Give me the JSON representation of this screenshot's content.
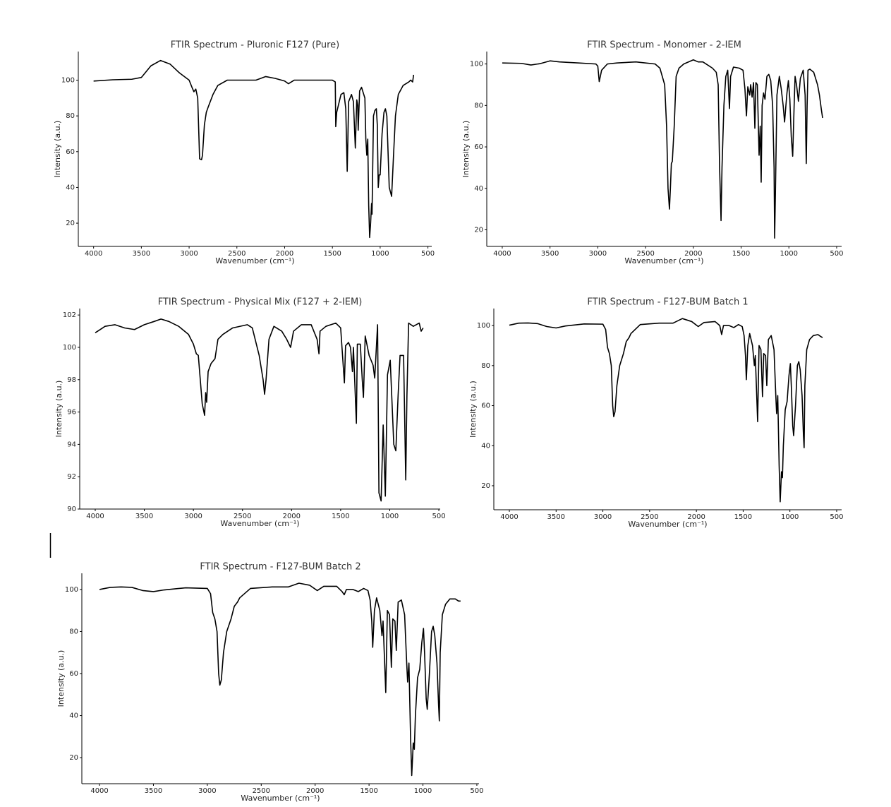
{
  "chart_data": [
    {
      "type": "line",
      "title": "FTIR Spectrum - Pluronic F127 (Pure)",
      "x_label": "Wavenumber (cm⁻¹)",
      "y_label": "Intensity (a.u.)",
      "xlim": [
        4160,
        460
      ],
      "xticks": [
        4000,
        3500,
        3000,
        2500,
        2000,
        1500,
        1000,
        500
      ],
      "ylim": [
        7,
        116
      ],
      "yticks": [
        20,
        40,
        60,
        80,
        100
      ],
      "color": "#000000",
      "x": [
        4000,
        3800,
        3600,
        3500,
        3400,
        3300,
        3200,
        3100,
        3000,
        2970,
        2950,
        2930,
        2910,
        2890,
        2870,
        2860,
        2840,
        2820,
        2800,
        2750,
        2700,
        2600,
        2400,
        2300,
        2200,
        2100,
        2000,
        1960,
        1900,
        1800,
        1600,
        1500,
        1470,
        1465,
        1455,
        1410,
        1380,
        1360,
        1345,
        1330,
        1300,
        1280,
        1260,
        1245,
        1235,
        1230,
        1215,
        1195,
        1160,
        1150,
        1140,
        1130,
        1120,
        1110,
        1100,
        1090,
        1085,
        1070,
        1055,
        1040,
        1030,
        1020,
        1010,
        1000,
        980,
        960,
        945,
        930,
        905,
        880,
        860,
        840,
        810,
        760,
        700,
        680,
        660,
        650
      ],
      "values": [
        99.5,
        100.2,
        100.5,
        101.5,
        108,
        111,
        109,
        104,
        100,
        96,
        93.5,
        95,
        90,
        56,
        55.5,
        58,
        75,
        82,
        85,
        92,
        97,
        100,
        100,
        100,
        102,
        101,
        99.5,
        98,
        100,
        100,
        100,
        100,
        99,
        74,
        82,
        92,
        93,
        84,
        49,
        88,
        92,
        88,
        62,
        89,
        86,
        72,
        94,
        96,
        90,
        67,
        58,
        67,
        30,
        12,
        20,
        31,
        25,
        80,
        83,
        84,
        75,
        40,
        47,
        47,
        70,
        82,
        84,
        80,
        40,
        35,
        58,
        80,
        92,
        97,
        99,
        100,
        99,
        103
      ]
    },
    {
      "type": "line",
      "title": "FTIR Spectrum - Monomer - 2-IEM",
      "x_label": "Wavenumber (cm⁻¹)",
      "y_label": "Intensity (a.u.)",
      "xlim": [
        4162,
        448
      ],
      "xticks": [
        4000,
        3500,
        3000,
        2500,
        2000,
        1500,
        1000,
        500
      ],
      "ylim": [
        12,
        106
      ],
      "yticks": [
        20,
        40,
        60,
        80,
        100
      ],
      "color": "#000000",
      "x": [
        4000,
        3800,
        3700,
        3600,
        3500,
        3400,
        3200,
        3020,
        3000,
        2985,
        2960,
        2900,
        2800,
        2600,
        2500,
        2400,
        2350,
        2300,
        2280,
        2265,
        2250,
        2240,
        2230,
        2220,
        2200,
        2180,
        2150,
        2100,
        2000,
        1950,
        1900,
        1850,
        1800,
        1760,
        1740,
        1725,
        1710,
        1700,
        1680,
        1660,
        1640,
        1622,
        1610,
        1580,
        1520,
        1480,
        1460,
        1444,
        1430,
        1410,
        1400,
        1385,
        1370,
        1356,
        1345,
        1330,
        1312,
        1300,
        1290,
        1280,
        1265,
        1250,
        1230,
        1210,
        1190,
        1170,
        1155,
        1149,
        1140,
        1125,
        1100,
        1080,
        1060,
        1045,
        1031,
        1020,
        1005,
        990,
        975,
        960,
        945,
        935,
        920,
        900,
        880,
        850,
        830,
        818,
        809,
        800,
        780,
        740,
        700,
        680,
        660,
        647
      ],
      "values": [
        100.5,
        100.3,
        99.5,
        100.2,
        101.5,
        101,
        100.5,
        100,
        99,
        91.5,
        97,
        100,
        100.5,
        101,
        100.5,
        100,
        98,
        90,
        70,
        40,
        30,
        40,
        52,
        53,
        70,
        94,
        98,
        100,
        102,
        101,
        101,
        99.5,
        98,
        96,
        90,
        50,
        24.5,
        50,
        80,
        94,
        97,
        78.5,
        94,
        98.5,
        98,
        97,
        88,
        75,
        89,
        85,
        90,
        84,
        91,
        69,
        91,
        90,
        56,
        70,
        43,
        80,
        86,
        83,
        94,
        95,
        92,
        80,
        50,
        16,
        40,
        85,
        94,
        88,
        80,
        72,
        80,
        86,
        92,
        83,
        65,
        55.5,
        80,
        94,
        90,
        82,
        93,
        97,
        85,
        52,
        80,
        97,
        97.5,
        96,
        90,
        85,
        78,
        74
      ]
    },
    {
      "type": "line",
      "title": "FTIR Spectrum - Physical Mix (F127 + 2-IEM)",
      "x_label": "Wavenumber (cm⁻¹)",
      "y_label": "Intensity (a.u.)",
      "xlim": [
        4158,
        486
      ],
      "xticks": [
        4000,
        3500,
        3000,
        2500,
        2000,
        1500,
        1000,
        500
      ],
      "ylim": [
        90,
        102.4
      ],
      "yticks": [
        90,
        92,
        94,
        96,
        98,
        100,
        102
      ],
      "color": "#000000",
      "x": [
        4000,
        3950,
        3900,
        3800,
        3700,
        3600,
        3500,
        3400,
        3330,
        3250,
        3150,
        3050,
        3000,
        2970,
        2950,
        2930,
        2910,
        2886,
        2875,
        2865,
        2850,
        2820,
        2780,
        2750,
        2700,
        2600,
        2450,
        2400,
        2330,
        2290,
        2275,
        2260,
        2230,
        2180,
        2100,
        2050,
        2010,
        1980,
        1900,
        1800,
        1740,
        1721,
        1710,
        1650,
        1600,
        1550,
        1500,
        1462,
        1450,
        1420,
        1400,
        1380,
        1370,
        1340,
        1330,
        1300,
        1280,
        1268,
        1250,
        1210,
        1170,
        1153,
        1124,
        1110,
        1088,
        1067,
        1045,
        1023,
        995,
        959,
        938,
        915,
        895,
        859,
        837,
        825,
        808,
        760,
        700,
        680,
        660
      ],
      "values": [
        100.9,
        101.1,
        101.3,
        101.4,
        101.2,
        101.1,
        101.4,
        101.6,
        101.75,
        101.6,
        101.3,
        100.8,
        100.2,
        99.6,
        99.5,
        98,
        96.5,
        95.8,
        97.2,
        96.6,
        98.5,
        99,
        99.3,
        100.5,
        100.8,
        101.2,
        101.4,
        101.2,
        99.5,
        98,
        97.1,
        98,
        100.5,
        101.3,
        101,
        100.5,
        100,
        101,
        101.4,
        101.4,
        100.5,
        99.6,
        101,
        101.3,
        101.4,
        101.5,
        101.2,
        97.8,
        100.1,
        100.3,
        100,
        98.5,
        100,
        95.3,
        100.2,
        100.2,
        98,
        96.9,
        100.7,
        99.5,
        98.9,
        98.1,
        101.4,
        91,
        90.5,
        95.2,
        90.8,
        98.3,
        99.2,
        94,
        93.6,
        97,
        99.5,
        99.5,
        91.8,
        97,
        101.5,
        101.3,
        101.5,
        101,
        101.2
      ]
    },
    {
      "type": "line",
      "title": "FTIR Spectrum - F127-BUM Batch 1",
      "x_label": "Wavenumber (cm⁻¹)",
      "y_label": "Intensity (a.u.)",
      "xlim": [
        4166,
        447
      ],
      "xticks": [
        4000,
        3500,
        3000,
        2500,
        2000,
        1500,
        1000,
        500
      ],
      "ylim": [
        8,
        108.5
      ],
      "yticks": [
        20,
        40,
        60,
        80,
        100
      ],
      "color": "#000000",
      "x": [
        4000,
        3900,
        3800,
        3700,
        3600,
        3500,
        3400,
        3200,
        3000,
        2970,
        2950,
        2930,
        2910,
        2895,
        2884,
        2870,
        2850,
        2820,
        2780,
        2750,
        2720,
        2700,
        2600,
        2400,
        2250,
        2150,
        2050,
        1980,
        1920,
        1800,
        1750,
        1730,
        1710,
        1650,
        1600,
        1550,
        1510,
        1490,
        1475,
        1466,
        1450,
        1430,
        1400,
        1380,
        1370,
        1345,
        1330,
        1310,
        1293,
        1280,
        1260,
        1247,
        1230,
        1200,
        1170,
        1155,
        1148,
        1142,
        1130,
        1115,
        1104,
        1090,
        1080,
        1070,
        1050,
        1030,
        1010,
        995,
        985,
        970,
        960,
        940,
        920,
        905,
        890,
        870,
        855,
        848,
        840,
        820,
        790,
        750,
        700,
        670,
        651
      ],
      "values": [
        100.2,
        101.2,
        101.3,
        101,
        99.5,
        98.8,
        99.8,
        100.8,
        100.7,
        98,
        89,
        86,
        80,
        60,
        54.5,
        57,
        70,
        80,
        86,
        92,
        94,
        96,
        100.5,
        101.2,
        101.2,
        103.5,
        102,
        99.5,
        101.5,
        102,
        100,
        95.5,
        100,
        100,
        99,
        100.5,
        99.5,
        95,
        85,
        73,
        90,
        96,
        90,
        80,
        85,
        52,
        90,
        88,
        64.5,
        86,
        85,
        70,
        93,
        95,
        88,
        70,
        62,
        56,
        65,
        30,
        12,
        27,
        24,
        40,
        58,
        62,
        75,
        81,
        70,
        50,
        45,
        60,
        80,
        82,
        78,
        65,
        45,
        39,
        70,
        88,
        93,
        95,
        95.5,
        94.5,
        94
      ]
    },
    {
      "type": "line",
      "title": "FTIR Spectrum - F127-BUM Batch 2",
      "x_label": "Wavenumber (cm⁻¹)",
      "y_label": "Intensity (a.u.)",
      "xlim": [
        4164,
        480
      ],
      "xticks": [
        4000,
        3500,
        3000,
        2500,
        2000,
        1500,
        1000,
        500
      ],
      "ylim": [
        7.6,
        107.7
      ],
      "yticks": [
        20,
        40,
        60,
        80,
        100
      ],
      "color": "#000000",
      "x": [
        4000,
        3900,
        3800,
        3700,
        3600,
        3500,
        3400,
        3200,
        3000,
        2970,
        2950,
        2930,
        2910,
        2895,
        2884,
        2870,
        2850,
        2820,
        2780,
        2750,
        2720,
        2700,
        2600,
        2400,
        2250,
        2150,
        2050,
        1980,
        1920,
        1800,
        1750,
        1730,
        1710,
        1650,
        1600,
        1550,
        1510,
        1490,
        1475,
        1466,
        1450,
        1430,
        1400,
        1380,
        1370,
        1345,
        1330,
        1310,
        1293,
        1280,
        1260,
        1247,
        1230,
        1200,
        1170,
        1155,
        1148,
        1142,
        1130,
        1115,
        1104,
        1090,
        1080,
        1070,
        1050,
        1030,
        1010,
        995,
        985,
        970,
        960,
        940,
        920,
        905,
        890,
        870,
        855,
        848,
        840,
        820,
        790,
        750,
        700,
        670,
        651
      ],
      "values": [
        100,
        101,
        101.2,
        101,
        99.5,
        99,
        99.8,
        100.8,
        100.5,
        98,
        89,
        86,
        80,
        60,
        54.5,
        57,
        70,
        80,
        86,
        92,
        94,
        96,
        100.5,
        101.2,
        101.2,
        103,
        102,
        99.5,
        101.5,
        101.5,
        99,
        97.5,
        100,
        100,
        99,
        100.5,
        99.5,
        95,
        85,
        72.5,
        90,
        96,
        90,
        78,
        85,
        51,
        90,
        88,
        63,
        86,
        85,
        71,
        94,
        95,
        88,
        70,
        62,
        56,
        65,
        30,
        11.5,
        27,
        24,
        40,
        58,
        62,
        75,
        81.5,
        70,
        48,
        43,
        60,
        80,
        82.5,
        78,
        65,
        45,
        37.5,
        70,
        88,
        93,
        95.5,
        95.5,
        94.5,
        94.5
      ]
    }
  ]
}
